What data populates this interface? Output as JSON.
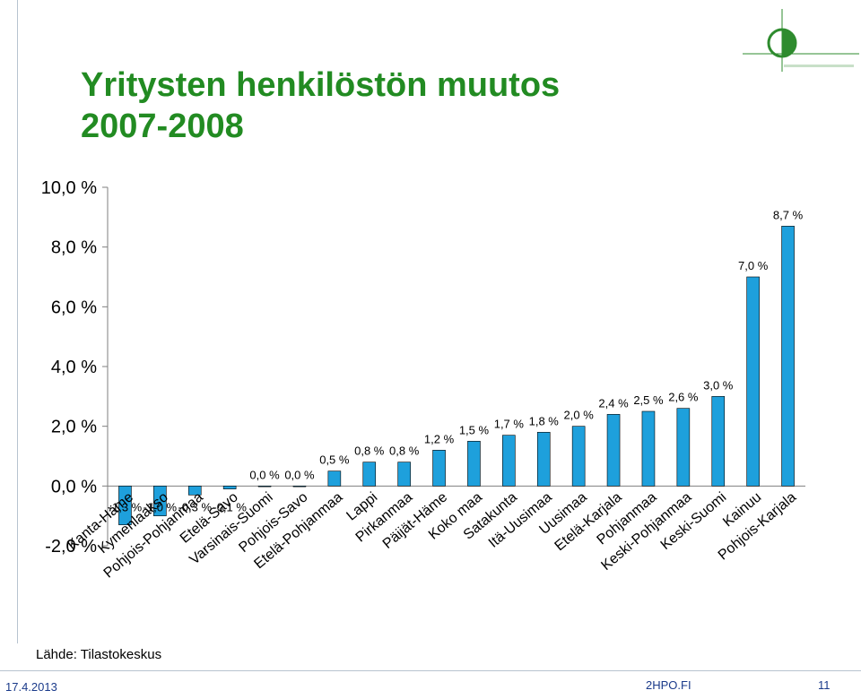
{
  "slide": {
    "title_lines": [
      "Yritysten henkilöstön muutos",
      "2007-2008"
    ],
    "source": "Lähde: Tilastokeskus",
    "date": "17.4.2013",
    "site": "2HPO.FI",
    "page": "11"
  },
  "colors": {
    "title": "#228b22",
    "bar_fill": "#1ea0dc",
    "bar_stroke": "#000000",
    "logo_green": "#2e8b2e",
    "footer_text": "#1a3a8a"
  },
  "chart_data": {
    "type": "bar",
    "title": "",
    "xlabel": "",
    "ylabel": "",
    "ylim": [
      -2.0,
      10.0
    ],
    "yticks": [
      -2.0,
      0.0,
      2.0,
      4.0,
      6.0,
      8.0,
      10.0
    ],
    "ytick_labels": [
      "-2,0 %",
      "0,0 %",
      "2,0 %",
      "4,0 %",
      "6,0 %",
      "8,0 %",
      "10,0 %"
    ],
    "grid": false,
    "legend": "none",
    "categories": [
      "Kanta-Häme",
      "Kymenlaakso",
      "Pohjois-Pohjanmaa",
      "Etelä-Savo",
      "Varsinais-Suomi",
      "Pohjois-Savo",
      "Etelä-Pohjanmaa",
      "Lappi",
      "Pirkanmaa",
      "Päijät-Häme",
      "Koko maa",
      "Satakunta",
      "Itä-Uusimaa",
      "Uusimaa",
      "Etelä-Karjala",
      "Pohjanmaa",
      "Keski-Pohjanmaa",
      "Keski-Suomi",
      "Kainuu",
      "Pohjois-Karjala"
    ],
    "values": [
      -1.3,
      -1.0,
      -0.3,
      -0.1,
      0.0,
      0.0,
      0.5,
      0.8,
      0.8,
      1.2,
      1.5,
      1.7,
      1.8,
      2.0,
      2.4,
      2.5,
      2.6,
      3.0,
      7.0,
      8.7
    ],
    "value_labels": [
      "-1,3 %",
      "-1,0 %",
      "-0,3 %",
      "-0,1 %",
      "0,0 %",
      "0,0 %",
      "0,5 %",
      "0,8 %",
      "0,8 %",
      "1,2 %",
      "1,5 %",
      "1,7 %",
      "1,8 %",
      "2,0 %",
      "2,4 %",
      "2,5 %",
      "2,6 %",
      "3,0 %",
      "7,0 %",
      "8,7 %"
    ]
  }
}
